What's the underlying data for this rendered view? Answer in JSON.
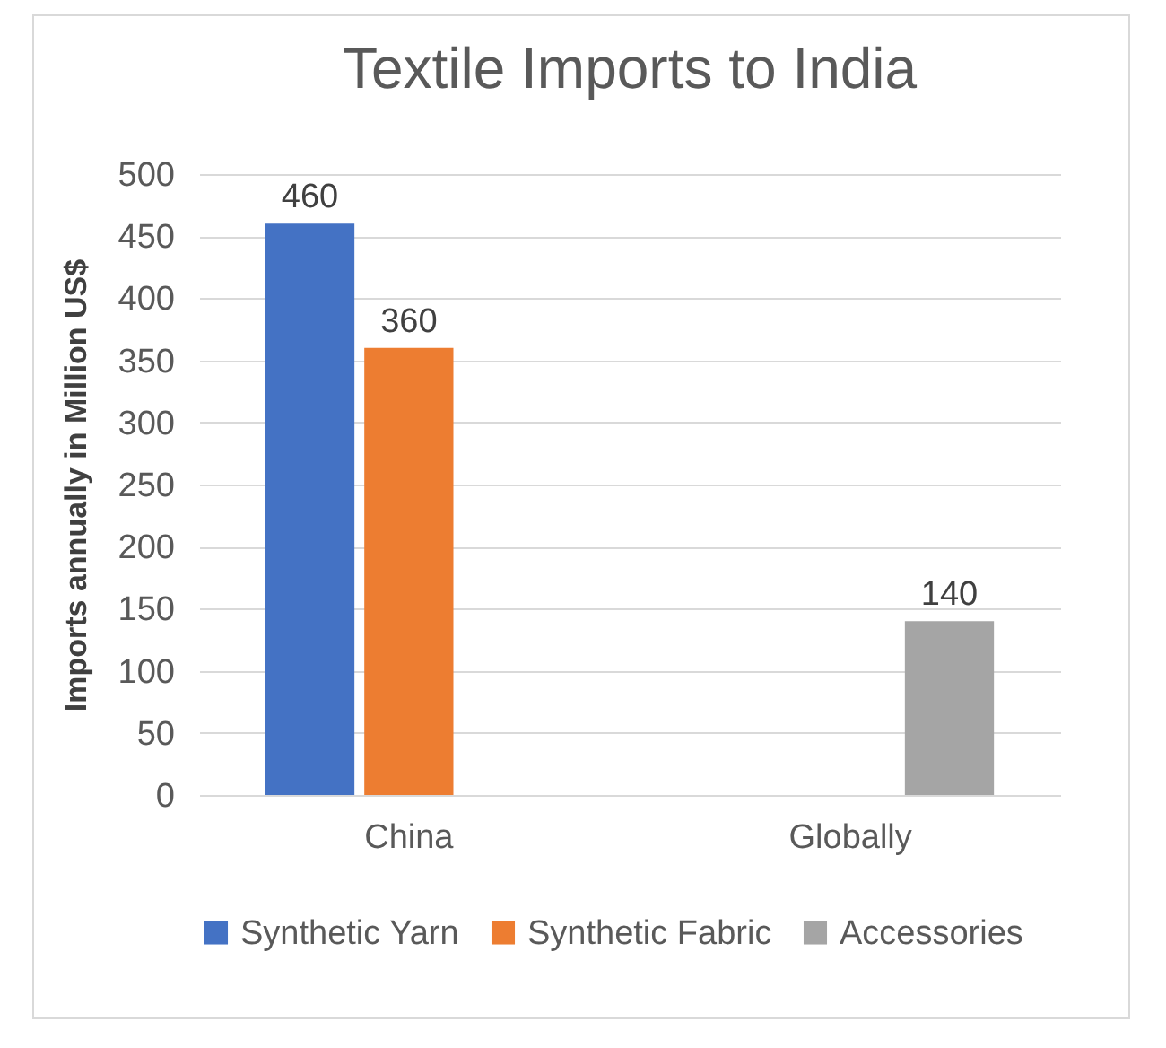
{
  "chart_data": {
    "type": "bar",
    "title": "Textile Imports to India",
    "ylabel": "Imports annually in Million US$",
    "categories": [
      "China",
      "Globally"
    ],
    "series": [
      {
        "name": "Synthetic Yarn",
        "color": "#4472c4",
        "values": [
          460,
          null
        ]
      },
      {
        "name": "Synthetic Fabric",
        "color": "#ed7d31",
        "values": [
          360,
          null
        ]
      },
      {
        "name": "Accessories",
        "color": "#a5a5a5",
        "values": [
          null,
          140
        ]
      }
    ],
    "ylim": [
      0,
      500
    ],
    "yticks": [
      0,
      50,
      100,
      150,
      200,
      250,
      300,
      350,
      400,
      450,
      500
    ],
    "grid": "y",
    "legend": "bottom",
    "data_labels": true
  }
}
